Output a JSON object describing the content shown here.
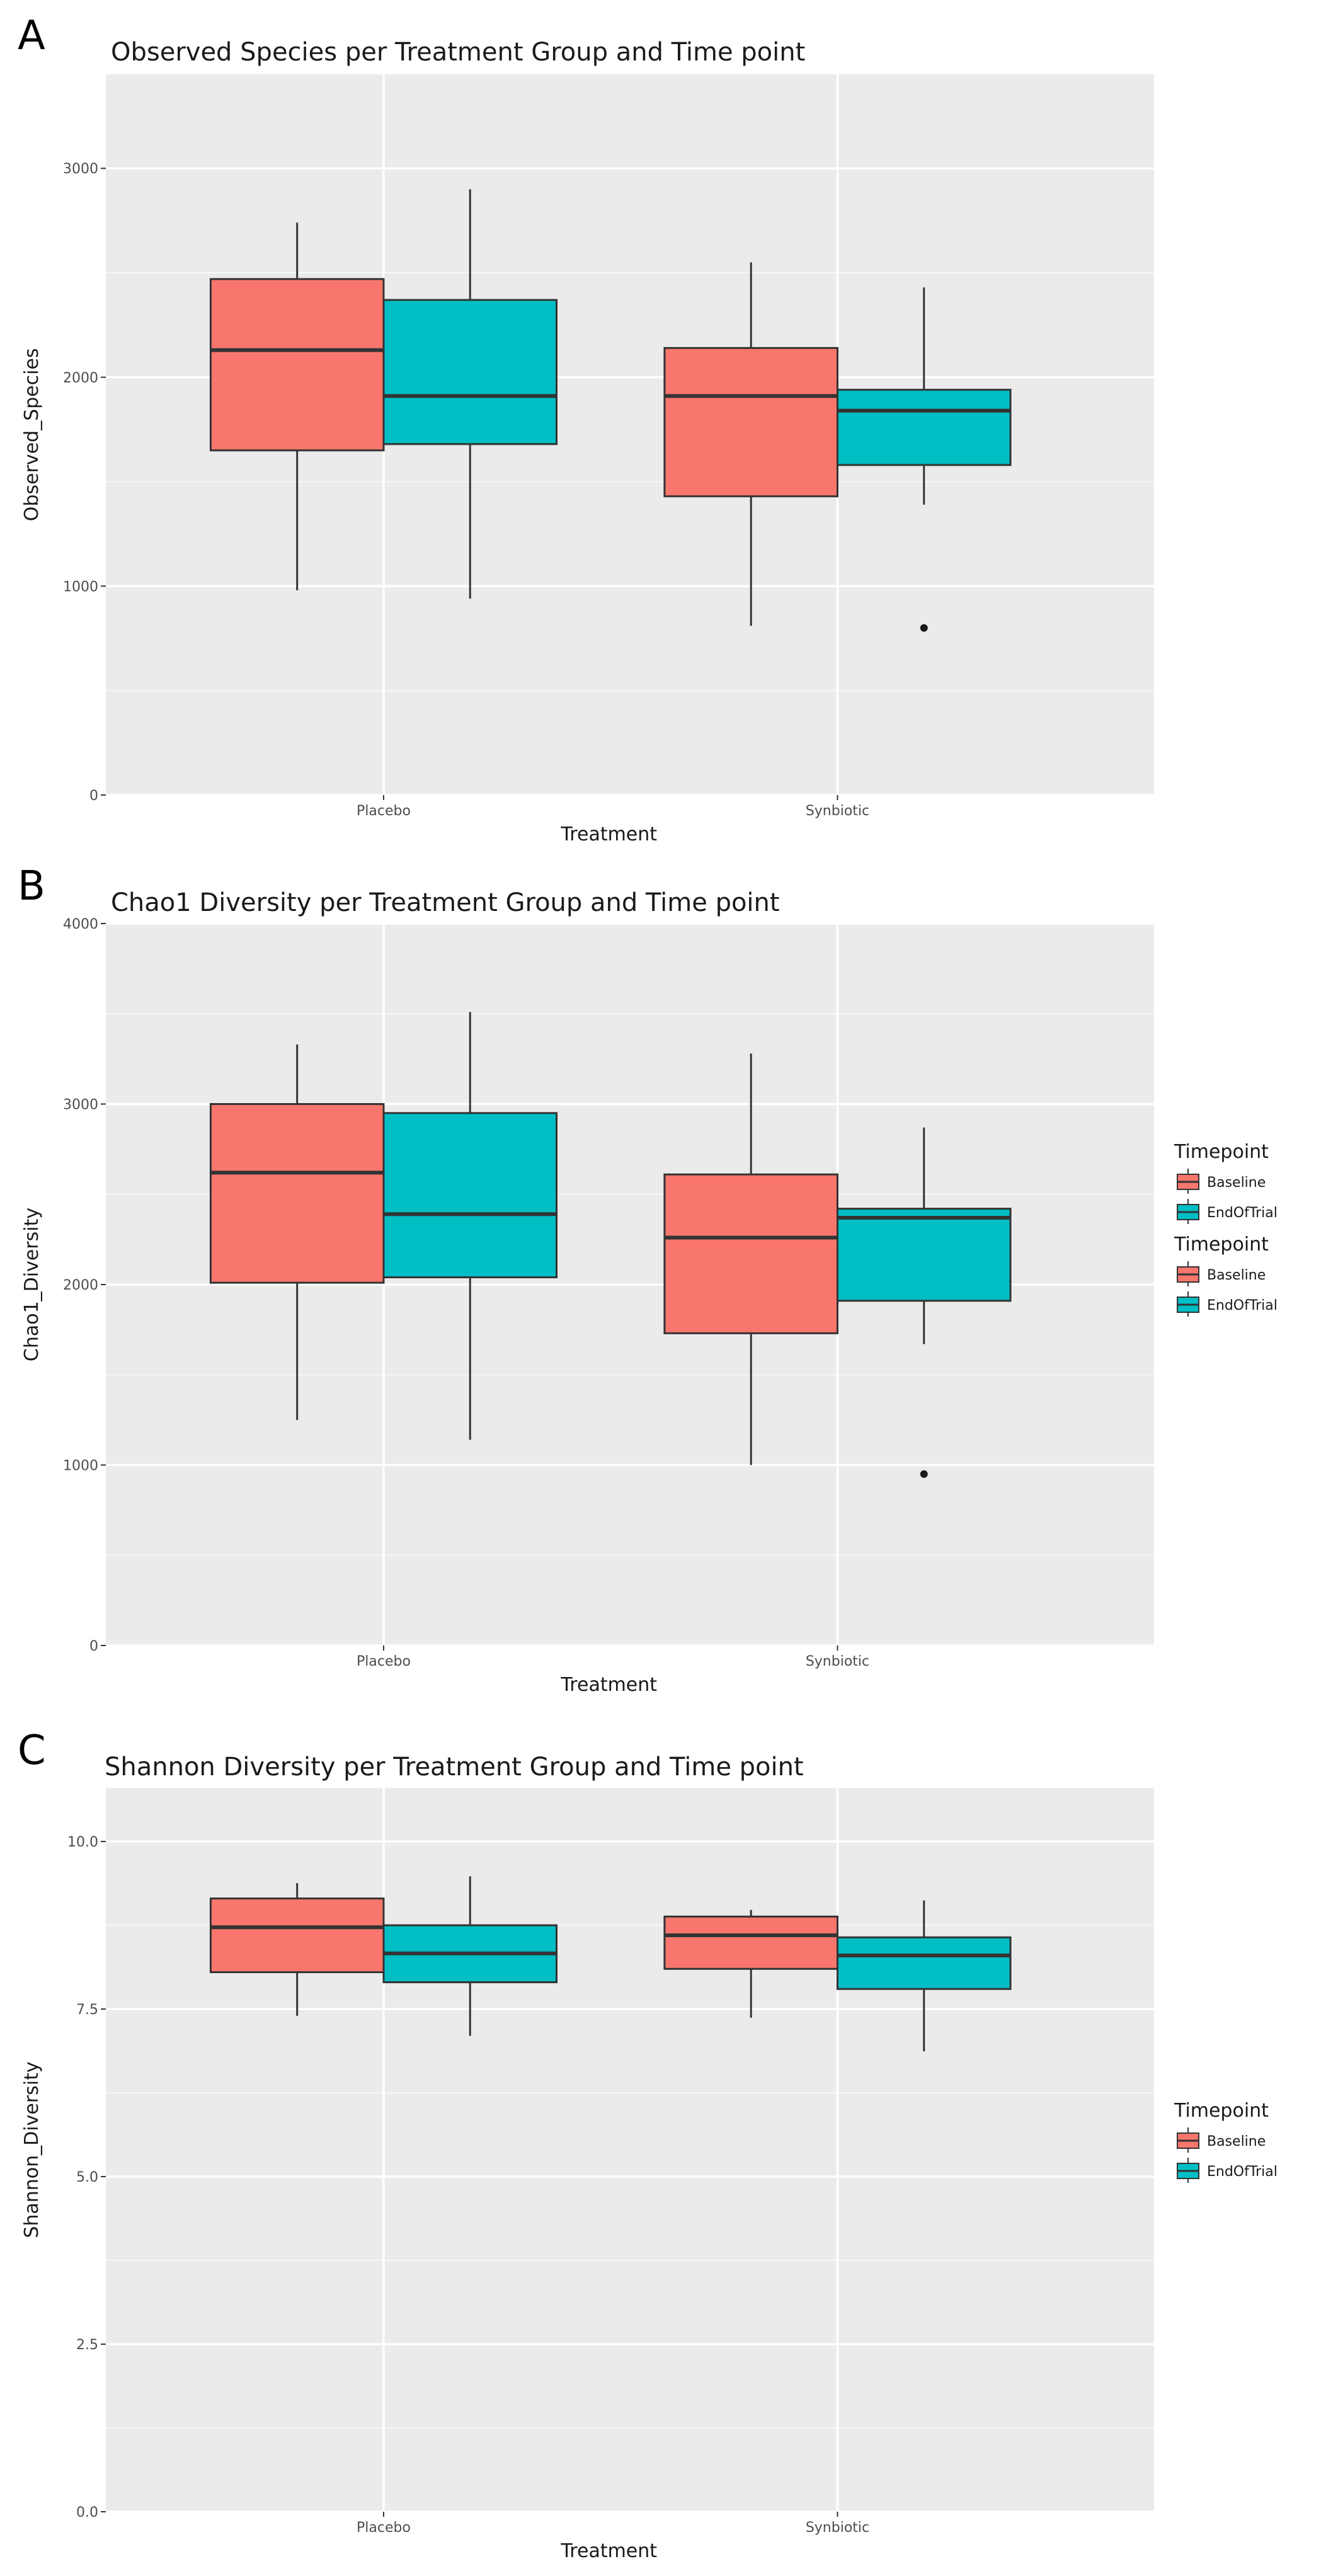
{
  "legend": {
    "title": "Timepoint",
    "entries": [
      {
        "label": "Baseline",
        "color": "#F8766D"
      },
      {
        "label": "EndOfTrial",
        "color": "#00BFC4"
      }
    ]
  },
  "colors": {
    "panel_bg": "#EBEBEB",
    "grid": "#FFFFFF",
    "box_line": "#333333",
    "whisker": "#333333"
  },
  "chart_data": [
    {
      "panel": "A",
      "type": "boxplot",
      "title": "Observed Species per Treatment Group and Time point",
      "xlabel": "Treatment",
      "ylabel": "Observed_Species",
      "ylim": [
        0,
        3450
      ],
      "yticks": [
        0,
        1000,
        2000,
        3000
      ],
      "ytick_labels": [
        "0",
        "1000",
        "2000",
        "3000"
      ],
      "categories": [
        "Placebo",
        "Synbiotic"
      ],
      "grid": true,
      "legend_position": "right",
      "series": [
        {
          "name": "Baseline",
          "boxes": [
            {
              "whisker_low": 980,
              "q1": 1650,
              "median": 2130,
              "q3": 2470,
              "whisker_high": 2740,
              "outliers": []
            },
            {
              "whisker_low": 810,
              "q1": 1430,
              "median": 1910,
              "q3": 2140,
              "whisker_high": 2550,
              "outliers": []
            }
          ]
        },
        {
          "name": "EndOfTrial",
          "boxes": [
            {
              "whisker_low": 940,
              "q1": 1680,
              "median": 1910,
              "q3": 2370,
              "whisker_high": 2900,
              "outliers": []
            },
            {
              "whisker_low": 1390,
              "q1": 1580,
              "median": 1840,
              "q3": 1940,
              "whisker_high": 2430,
              "outliers": [
                800
              ]
            }
          ]
        }
      ]
    },
    {
      "panel": "B",
      "type": "boxplot",
      "title": "Chao1 Diversity per Treatment Group and Time point",
      "xlabel": "Treatment",
      "ylabel": "Chao1_Diversity",
      "ylim": [
        0,
        4000
      ],
      "yticks": [
        0,
        1000,
        2000,
        3000,
        4000
      ],
      "ytick_labels": [
        "0",
        "1000",
        "2000",
        "3000",
        "4000"
      ],
      "categories": [
        "Placebo",
        "Synbiotic"
      ],
      "grid": true,
      "legend_position": "right",
      "series": [
        {
          "name": "Baseline",
          "boxes": [
            {
              "whisker_low": 1250,
              "q1": 2010,
              "median": 2620,
              "q3": 3000,
              "whisker_high": 3330,
              "outliers": []
            },
            {
              "whisker_low": 1000,
              "q1": 1730,
              "median": 2260,
              "q3": 2610,
              "whisker_high": 3280,
              "outliers": []
            }
          ]
        },
        {
          "name": "EndOfTrial",
          "boxes": [
            {
              "whisker_low": 1140,
              "q1": 2040,
              "median": 2390,
              "q3": 2950,
              "whisker_high": 3510,
              "outliers": []
            },
            {
              "whisker_low": 1670,
              "q1": 1910,
              "median": 2370,
              "q3": 2420,
              "whisker_high": 2870,
              "outliers": [
                950
              ]
            }
          ]
        }
      ]
    },
    {
      "panel": "C",
      "type": "boxplot",
      "title": "Shannon Diversity per Treatment Group and Time point",
      "xlabel": "Treatment",
      "ylabel": "Shannon_Diversity",
      "ylim": [
        0,
        10.8
      ],
      "yticks": [
        0,
        2.5,
        5,
        7.5,
        10
      ],
      "ytick_labels": [
        "0.0",
        "2.5",
        "5.0",
        "7.5",
        "10.0"
      ],
      "categories": [
        "Placebo",
        "Synbiotic"
      ],
      "grid": true,
      "legend_position": "right",
      "series": [
        {
          "name": "Baseline",
          "boxes": [
            {
              "whisker_low": 7.4,
              "q1": 8.05,
              "median": 8.72,
              "q3": 9.15,
              "whisker_high": 9.38,
              "outliers": []
            },
            {
              "whisker_low": 7.37,
              "q1": 8.1,
              "median": 8.6,
              "q3": 8.88,
              "whisker_high": 8.98,
              "outliers": []
            }
          ]
        },
        {
          "name": "EndOfTrial",
          "boxes": [
            {
              "whisker_low": 7.1,
              "q1": 7.9,
              "median": 8.33,
              "q3": 8.75,
              "whisker_high": 9.48,
              "outliers": []
            },
            {
              "whisker_low": 6.87,
              "q1": 7.8,
              "median": 8.3,
              "q3": 8.57,
              "whisker_high": 9.12,
              "outliers": []
            }
          ]
        }
      ]
    }
  ]
}
